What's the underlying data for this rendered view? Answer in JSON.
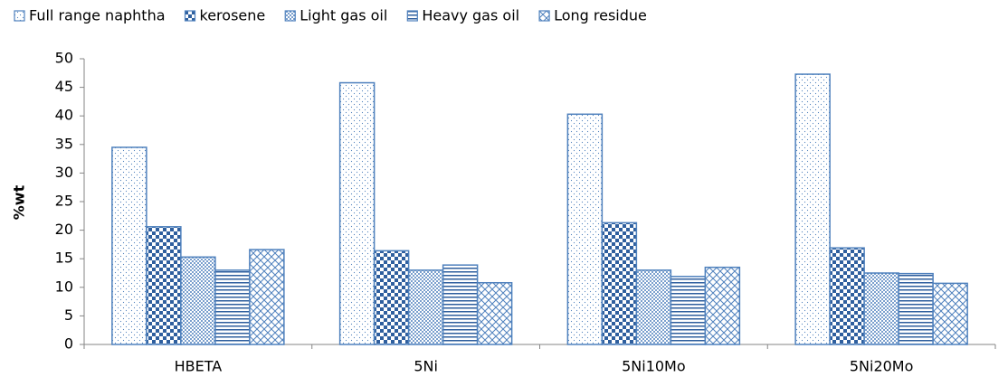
{
  "chart_data": {
    "type": "bar",
    "y_label": "%wt",
    "categories": [
      "HBETA",
      "5Ni",
      "5Ni10Mo",
      "5Ni20Mo"
    ],
    "series": [
      {
        "name": "Full range naphtha",
        "color": "#4f81bd",
        "values": [
          34.5,
          45.8,
          40.3,
          47.3
        ]
      },
      {
        "name": "kerosene",
        "color": "#4f81bd",
        "values": [
          20.6,
          16.4,
          21.3,
          16.9
        ]
      },
      {
        "name": "Light gas oil",
        "color": "#4f81bd",
        "values": [
          15.3,
          13.0,
          13.0,
          12.5
        ]
      },
      {
        "name": "Heavy gas oil",
        "color": "#4f81bd",
        "values": [
          13.0,
          13.9,
          11.9,
          12.4
        ]
      },
      {
        "name": "Long residue",
        "color": "#4f81bd",
        "values": [
          16.6,
          10.8,
          13.5,
          10.7
        ]
      }
    ],
    "ylim": [
      0,
      50
    ],
    "yticks": [
      0,
      5,
      10,
      15,
      20,
      25,
      30,
      35,
      40,
      45,
      50
    ],
    "grid": false,
    "legend": "top"
  }
}
